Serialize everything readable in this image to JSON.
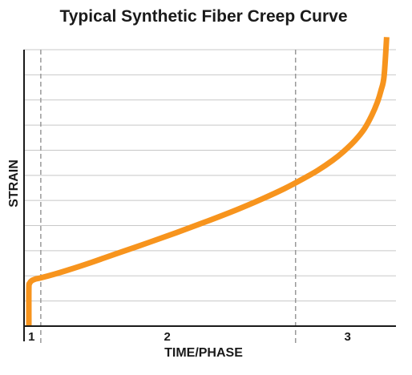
{
  "chart_data": {
    "type": "line",
    "title": "Typical Synthetic Fiber Creep Curve",
    "xlabel": "TIME/PHASE",
    "ylabel": "STRAIN",
    "xlim": [
      0,
      100
    ],
    "ylim": [
      0,
      11
    ],
    "grid": {
      "horizontal": true,
      "vertical": false
    },
    "legend": "none",
    "y_gridlines": [
      1,
      2,
      3,
      4,
      5,
      6,
      7,
      8,
      9,
      10,
      11
    ],
    "phase_dividers": [
      4.5,
      73
    ],
    "phase_labels": [
      {
        "label": "1",
        "x": 2
      },
      {
        "label": "2",
        "x": 38.5
      },
      {
        "label": "3",
        "x": 87
      }
    ],
    "series": [
      {
        "color": "#f7941d",
        "x": [
          1.3,
          1.3,
          1.5,
          2.0,
          3.0,
          4.5,
          8.0,
          12.0,
          18.0,
          25.0,
          33.0,
          41.0,
          49.0,
          57.0,
          64.0,
          70.0,
          75.0,
          79.0,
          83.0,
          86.0,
          89.0,
          91.5,
          93.5,
          95.0,
          96.0,
          96.8,
          97.5
        ],
        "y": [
          0.0,
          1.5,
          1.7,
          1.8,
          1.87,
          1.92,
          2.06,
          2.24,
          2.53,
          2.89,
          3.3,
          3.72,
          4.16,
          4.62,
          5.06,
          5.47,
          5.86,
          6.2,
          6.6,
          6.96,
          7.39,
          7.85,
          8.39,
          8.91,
          9.39,
          9.94,
          11.5
        ]
      }
    ]
  },
  "colors": {
    "curve": "#f7941d",
    "grid": "#c8c8c8",
    "divider": "#999999",
    "axis": "#1a1a1a",
    "text": "#1a1a1a"
  }
}
